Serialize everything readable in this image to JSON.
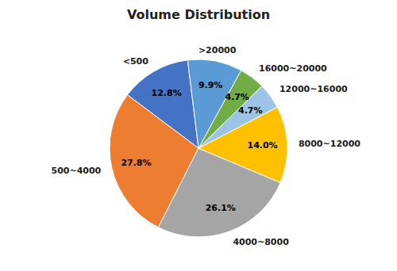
{
  "chart_data": {
    "type": "pie",
    "title": "Volume Distribution",
    "categories": [
      "<500",
      "500~4000",
      "4000~8000",
      "8000~12000",
      "12000~16000",
      "16000~20000",
      ">20000"
    ],
    "values": [
      12.8,
      27.8,
      26.1,
      14.0,
      4.7,
      4.7,
      9.9
    ],
    "value_labels": [
      "12.8%",
      "27.8%",
      "26.1%",
      "14.0%",
      "4.7%",
      "4.7%",
      "9.9%"
    ],
    "colors": [
      "#4472C4",
      "#ED7D31",
      "#A5A5A5",
      "#FFC000",
      "#9DC3E6",
      "#70AD47",
      "#5B9BD5"
    ],
    "data_labels": true
  }
}
